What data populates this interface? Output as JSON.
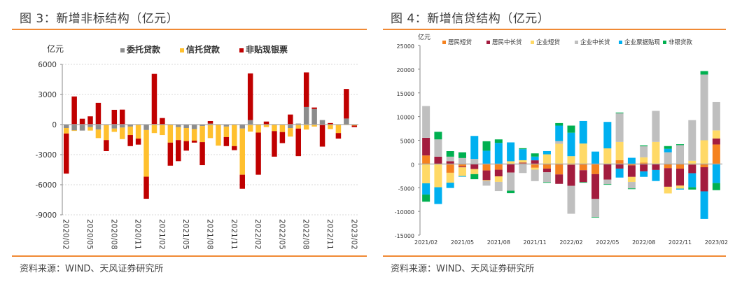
{
  "left": {
    "title": "图 3：新增非标结构（亿元）",
    "source": "资料来源：WIND、天风证券研究所"
  },
  "right": {
    "title": "图 4：新增信贷结构（亿元）",
    "source": "资料来源：WIND、天风证券研究所"
  },
  "accent_color": "#f08a35",
  "chart_data": [
    {
      "type": "bar",
      "stacked": true,
      "title": "新增非标结构（亿元）",
      "ylabel": "亿元",
      "ylim": [
        -9000,
        6000
      ],
      "yticks": [
        6000,
        3000,
        0,
        -3000,
        -6000,
        -9000
      ],
      "grid": true,
      "legend_position": "top",
      "categories": [
        "2020/02",
        "2020/03",
        "2020/04",
        "2020/05",
        "2020/06",
        "2020/07",
        "2020/08",
        "2020/09",
        "2020/10",
        "2020/11",
        "2020/12",
        "2021/01",
        "2021/02",
        "2021/03",
        "2021/04",
        "2021/05",
        "2021/06",
        "2021/07",
        "2021/08",
        "2021/09",
        "2021/10",
        "2021/11",
        "2021/12",
        "2022/01",
        "2022/02",
        "2022/03",
        "2022/04",
        "2022/05",
        "2022/06",
        "2022/07",
        "2022/08",
        "2022/09",
        "2022/10",
        "2022/11",
        "2022/12",
        "2023/01",
        "2023/02"
      ],
      "xtick_labels": [
        "2020/02",
        "2020/05",
        "2020/08",
        "2020/11",
        "2021/02",
        "2021/05",
        "2021/08",
        "2021/11",
        "2022/02",
        "2022/05",
        "2022/08",
        "2022/11",
        "2023/02"
      ],
      "series": [
        {
          "name": "委托贷款",
          "color": "#8c8c8c",
          "values": [
            -350,
            -580,
            -600,
            -250,
            -500,
            -50,
            -400,
            -300,
            -200,
            0,
            -550,
            50,
            -50,
            0,
            -250,
            -350,
            -450,
            -150,
            100,
            0,
            -200,
            0,
            -400,
            450,
            0,
            0,
            0,
            0,
            -350,
            100,
            1750,
            1550,
            450,
            0,
            0,
            600,
            -50
          ]
        },
        {
          "name": "信托贷款",
          "color": "#ffc02e",
          "values": [
            -540,
            -50,
            0,
            -350,
            -850,
            -1500,
            -330,
            -1150,
            -850,
            -1400,
            -4650,
            -850,
            -1000,
            -1800,
            -1300,
            -1300,
            -1150,
            -1600,
            -1350,
            -2100,
            -1050,
            -2150,
            -4600,
            -700,
            -800,
            -250,
            -650,
            -750,
            -850,
            -400,
            -500,
            -200,
            0,
            -450,
            -850,
            -50,
            -50
          ]
        },
        {
          "name": "非贴现银票",
          "color": "#c00000",
          "values": [
            -4000,
            2800,
            580,
            820,
            2170,
            -1100,
            1470,
            1490,
            -1100,
            -600,
            -2200,
            5000,
            650,
            -2300,
            -2100,
            -950,
            -200,
            -2300,
            250,
            0,
            -900,
            -400,
            -1400,
            4650,
            -4200,
            300,
            -2550,
            -1100,
            1000,
            -2750,
            3450,
            150,
            -2200,
            150,
            -550,
            2950,
            -150
          ]
        }
      ]
    },
    {
      "type": "bar",
      "stacked": true,
      "title": "新增信贷结构（亿元）",
      "ylabel": "亿元",
      "ylim": [
        -15000,
        25000
      ],
      "yticks": [
        25000,
        20000,
        15000,
        10000,
        5000,
        0,
        -5000,
        -10000,
        -15000
      ],
      "grid": false,
      "legend_position": "top",
      "categories": [
        "2021/02",
        "2021/03",
        "2021/04",
        "2021/05",
        "2021/06",
        "2021/07",
        "2021/08",
        "2021/09",
        "2021/10",
        "2021/11",
        "2021/12",
        "2022/01",
        "2022/02",
        "2022/03",
        "2022/04",
        "2022/05",
        "2022/06",
        "2022/07",
        "2022/08",
        "2022/09",
        "2022/10",
        "2022/11",
        "2022/12",
        "2023/01",
        "2023/02"
      ],
      "xtick_labels": [
        "2021/02",
        "2021/05",
        "2021/08",
        "2021/11",
        "2022/02",
        "2022/05",
        "2022/08",
        "2022/11",
        "2023/02"
      ],
      "series": [
        {
          "name": "居民短贷",
          "color": "#f5821f",
          "values": [
            1800,
            0,
            -1850,
            -500,
            0,
            -1360,
            -1210,
            0,
            150,
            -800,
            -970,
            -2200,
            -200,
            -1310,
            -2130,
            0,
            820,
            -300,
            290,
            0,
            -870,
            -970,
            -150,
            -680,
            4120
          ]
        },
        {
          "name": "居民中长贷",
          "color": "#a31c3e",
          "values": [
            3730,
            1550,
            580,
            -200,
            -1070,
            -2040,
            -1400,
            -1800,
            150,
            780,
            -780,
            -1990,
            -4400,
            -2520,
            -5240,
            -3300,
            -970,
            -2420,
            -1550,
            -1260,
            -3930,
            -3590,
            -1800,
            -5090,
            1260
          ]
        },
        {
          "name": "企业短贷",
          "color": "#ffd966",
          "values": [
            -4070,
            -4900,
            -2090,
            -1840,
            -1070,
            -150,
            -1160,
            580,
            500,
            -390,
            2040,
            4270,
            1650,
            4320,
            0,
            3300,
            3830,
            -1070,
            1120,
            4660,
            -1410,
            -630,
            680,
            5000,
            1700
          ]
        },
        {
          "name": "企业中长贷",
          "color": "#bfbfbf",
          "values": [
            6700,
            3640,
            970,
            1260,
            1070,
            -1020,
            -1940,
            -3830,
            -1900,
            -2420,
            -2090,
            580,
            -5900,
            0,
            -3830,
            -970,
            6060,
            -1360,
            2330,
            6550,
            2470,
            3980,
            8580,
            13870,
            5970
          ]
        },
        {
          "name": "企业票据贴现",
          "color": "#00b0f0",
          "values": [
            -2380,
            -3540,
            -1120,
            -150,
            4850,
            2800,
            4460,
            3980,
            2330,
            780,
            680,
            3250,
            4950,
            4750,
            2620,
            5580,
            -1890,
            1310,
            -1160,
            -2330,
            730,
            -200,
            -2960,
            -5820,
            -4020
          ]
        },
        {
          "name": "非银贷款",
          "color": "#00b050",
          "values": [
            -1500,
            1600,
            1160,
            1210,
            -1070,
            2000,
            730,
            -530,
            200,
            680,
            -100,
            530,
            1500,
            -100,
            -100,
            -100,
            150,
            -150,
            190,
            0,
            580,
            190,
            -480,
            730,
            -1500
          ]
        }
      ]
    }
  ]
}
